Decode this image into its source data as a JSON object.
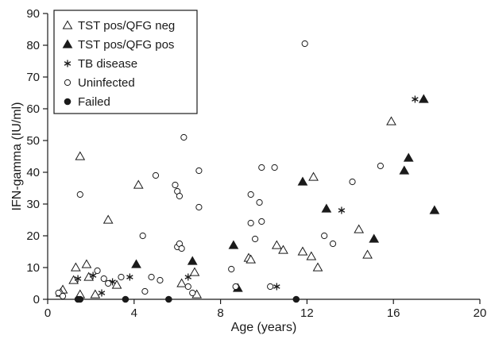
{
  "chart_data": {
    "type": "scatter",
    "title": "",
    "xlabel": "Age (years)",
    "ylabel": "IFN-gamma (IU/ml)",
    "xlim": [
      0,
      20
    ],
    "ylim": [
      0,
      90
    ],
    "xticks": [
      0,
      4,
      8,
      12,
      16,
      20
    ],
    "yticks": [
      0,
      10,
      20,
      30,
      40,
      50,
      60,
      70,
      80,
      90
    ],
    "grid": false,
    "legend_position": "top-left",
    "series": [
      {
        "name": "TST pos/QFG neg",
        "marker": "triangle-open",
        "points": [
          [
            0.7,
            3
          ],
          [
            0.6,
            2
          ],
          [
            1.3,
            10
          ],
          [
            1.2,
            6
          ],
          [
            1.5,
            45
          ],
          [
            1.5,
            1.5
          ],
          [
            1.8,
            11
          ],
          [
            1.9,
            7
          ],
          [
            2.2,
            1.5
          ],
          [
            2.8,
            25
          ],
          [
            3.2,
            4.5
          ],
          [
            4.2,
            36
          ],
          [
            6.2,
            5
          ],
          [
            6.8,
            8.5
          ],
          [
            6.9,
            1.5
          ],
          [
            9.3,
            13
          ],
          [
            9.4,
            12.5
          ],
          [
            10.6,
            17
          ],
          [
            10.9,
            15.5
          ],
          [
            11.8,
            15
          ],
          [
            12.2,
            13.5
          ],
          [
            12.3,
            38.5
          ],
          [
            12.5,
            10
          ],
          [
            14.4,
            22
          ],
          [
            14.8,
            14
          ],
          [
            15.9,
            56
          ]
        ]
      },
      {
        "name": "TST pos/QFG pos",
        "marker": "triangle-filled",
        "points": [
          [
            4.1,
            11
          ],
          [
            6.7,
            12
          ],
          [
            8.6,
            17
          ],
          [
            8.8,
            3.5
          ],
          [
            11.8,
            37
          ],
          [
            12.9,
            28.5
          ],
          [
            15.1,
            19
          ],
          [
            16.5,
            40.5
          ],
          [
            16.7,
            44.5
          ],
          [
            17.4,
            63
          ],
          [
            17.9,
            28
          ]
        ]
      },
      {
        "name": "TB disease",
        "marker": "asterisk",
        "points": [
          [
            1.4,
            6.5
          ],
          [
            2.1,
            7.5
          ],
          [
            2.5,
            2
          ],
          [
            3.0,
            5.5
          ],
          [
            3.8,
            7
          ],
          [
            6.5,
            7
          ],
          [
            10.6,
            4
          ],
          [
            13.6,
            28
          ],
          [
            17.0,
            63
          ]
        ]
      },
      {
        "name": "Uninfected",
        "marker": "circle-open",
        "points": [
          [
            0.5,
            2
          ],
          [
            0.7,
            1
          ],
          [
            1.5,
            33
          ],
          [
            2.3,
            9
          ],
          [
            2.6,
            6.5
          ],
          [
            2.8,
            5
          ],
          [
            3.4,
            7
          ],
          [
            4.4,
            20
          ],
          [
            4.5,
            2.5
          ],
          [
            4.8,
            7
          ],
          [
            5.0,
            39
          ],
          [
            5.2,
            6
          ],
          [
            5.9,
            36
          ],
          [
            6.0,
            34
          ],
          [
            6.1,
            32.5
          ],
          [
            6.0,
            16.5
          ],
          [
            6.1,
            17.5
          ],
          [
            6.2,
            16
          ],
          [
            6.3,
            51
          ],
          [
            6.5,
            4
          ],
          [
            6.7,
            2
          ],
          [
            7.0,
            40.5
          ],
          [
            7.0,
            29
          ],
          [
            8.5,
            9.5
          ],
          [
            8.7,
            4
          ],
          [
            9.4,
            24
          ],
          [
            9.4,
            33
          ],
          [
            9.6,
            19
          ],
          [
            9.8,
            30.5
          ],
          [
            9.9,
            24.5
          ],
          [
            9.9,
            41.5
          ],
          [
            10.3,
            4
          ],
          [
            10.5,
            41.5
          ],
          [
            11.9,
            80.5
          ],
          [
            12.8,
            20
          ],
          [
            13.2,
            17.5
          ],
          [
            14.1,
            37
          ],
          [
            15.4,
            42
          ]
        ]
      },
      {
        "name": "Failed",
        "marker": "circle-filled",
        "points": [
          [
            1.4,
            0
          ],
          [
            1.5,
            0
          ],
          [
            3.6,
            0
          ],
          [
            5.6,
            0
          ],
          [
            11.5,
            0
          ]
        ]
      }
    ]
  }
}
